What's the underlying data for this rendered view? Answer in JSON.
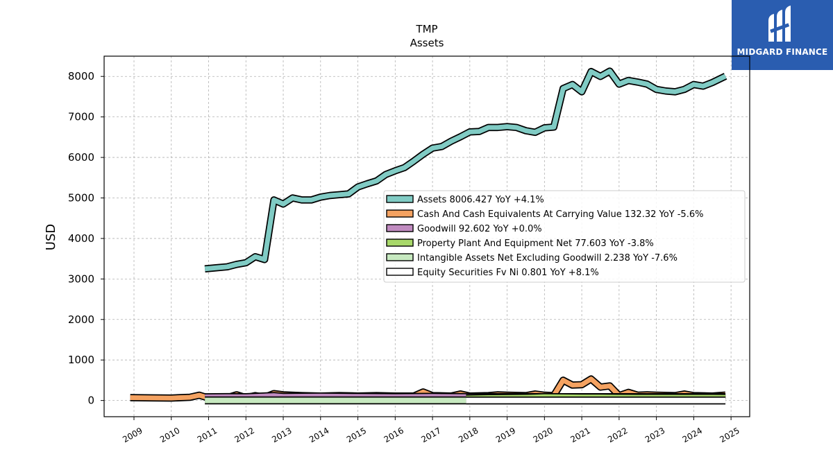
{
  "brand": {
    "name": "MIDGARD FINANCE",
    "bg": "#2a5db0"
  },
  "chart_data": {
    "type": "area",
    "title": "TMP",
    "subtitle": "Assets",
    "ylabel": "USD",
    "xlabel": "",
    "ylim": [
      -400,
      8500
    ],
    "xlim": [
      2008.2,
      2025.5
    ],
    "yticks": [
      0,
      1000,
      2000,
      3000,
      4000,
      5000,
      6000,
      7000,
      8000
    ],
    "xticks": [
      "2009",
      "2010",
      "2011",
      "2012",
      "2013",
      "2014",
      "2015",
      "2016",
      "2017",
      "2018",
      "2019",
      "2020",
      "2021",
      "2022",
      "2023",
      "2024",
      "2025"
    ],
    "grid": true,
    "legend_position": "center-right",
    "series": [
      {
        "name": "Assets",
        "legend": "Assets  8006.427 YoY +4.1%",
        "color": "#80cbc4",
        "x": [
          2010.9,
          2011.25,
          2011.5,
          2011.75,
          2012.0,
          2012.25,
          2012.5,
          2012.75,
          2013.0,
          2013.25,
          2013.5,
          2013.75,
          2014.0,
          2014.25,
          2014.5,
          2014.75,
          2015.0,
          2015.25,
          2015.5,
          2015.75,
          2016.0,
          2016.25,
          2016.5,
          2016.75,
          2017.0,
          2017.25,
          2017.5,
          2017.75,
          2018.0,
          2018.25,
          2018.5,
          2018.75,
          2019.0,
          2019.25,
          2019.5,
          2019.75,
          2020.0,
          2020.25,
          2020.5,
          2020.75,
          2021.0,
          2021.25,
          2021.5,
          2021.75,
          2022.0,
          2022.25,
          2022.5,
          2022.75,
          2023.0,
          2023.25,
          2023.5,
          2023.75,
          2024.0,
          2024.25,
          2024.5,
          2024.85
        ],
        "y": [
          3250,
          3280,
          3300,
          3360,
          3400,
          3550,
          3480,
          4950,
          4850,
          5000,
          4950,
          4950,
          5020,
          5060,
          5080,
          5100,
          5270,
          5350,
          5420,
          5580,
          5670,
          5750,
          5910,
          6080,
          6230,
          6270,
          6400,
          6510,
          6630,
          6640,
          6740,
          6740,
          6760,
          6740,
          6660,
          6620,
          6730,
          6750,
          7700,
          7800,
          7620,
          8120,
          8000,
          8130,
          7810,
          7900,
          7860,
          7810,
          7680,
          7640,
          7620,
          7680,
          7800,
          7760,
          7850,
          8006
        ]
      },
      {
        "name": "Cash And Cash Equivalents At Carrying Value",
        "legend": "Cash And Cash Equivalents At Carrying Value  132.32 YoY -5.6%",
        "color": "#f4a261",
        "x": [
          2008.9,
          2009.5,
          2010.0,
          2010.5,
          2010.75,
          2011.0,
          2011.25,
          2011.5,
          2011.75,
          2012.0,
          2012.25,
          2012.5,
          2012.75,
          2013.0,
          2013.5,
          2014.0,
          2014.5,
          2015.0,
          2015.5,
          2016.0,
          2016.5,
          2016.75,
          2017.0,
          2017.5,
          2017.75,
          2018.0,
          2018.5,
          2018.75,
          2019.0,
          2019.5,
          2019.75,
          2020.0,
          2020.25,
          2020.5,
          2020.75,
          2021.0,
          2021.25,
          2021.5,
          2021.75,
          2022.0,
          2022.25,
          2022.5,
          2022.75,
          2023.0,
          2023.5,
          2023.75,
          2024.0,
          2024.5,
          2024.85
        ],
        "y": [
          70,
          65,
          60,
          80,
          130,
          60,
          80,
          70,
          140,
          70,
          120,
          80,
          170,
          140,
          120,
          110,
          120,
          110,
          120,
          110,
          110,
          210,
          120,
          110,
          160,
          110,
          120,
          140,
          130,
          120,
          160,
          130,
          120,
          500,
          380,
          390,
          530,
          330,
          360,
          120,
          200,
          130,
          140,
          130,
          120,
          160,
          120,
          110,
          132
        ]
      },
      {
        "name": "Goodwill",
        "legend": "Goodwill  92.602 YoY +0.0%",
        "color": "#c08bc0",
        "x": [
          2010.9,
          2011.5,
          2012.0,
          2012.75,
          2013.0,
          2014.0,
          2015.0,
          2016.0,
          2017.0,
          2018.0,
          2019.0,
          2020.0,
          2021.0,
          2022.0,
          2023.0,
          2024.0,
          2024.85
        ],
        "y": [
          90,
          95,
          92,
          120,
          100,
          110,
          100,
          95,
          100,
          95,
          95,
          93,
          93,
          93,
          93,
          93,
          92.6
        ]
      },
      {
        "name": "Property Plant And Equipment Net",
        "legend": "Property Plant And Equipment Net  77.603 YoY -3.8%",
        "color": "#a8d86a",
        "x": [
          2017.9,
          2018.5,
          2019.0,
          2019.5,
          2019.75,
          2020.0,
          2020.5,
          2021.0,
          2021.5,
          2022.0,
          2022.5,
          2023.0,
          2023.5,
          2024.0,
          2024.5,
          2024.85
        ],
        "y": [
          60,
          70,
          75,
          80,
          85,
          95,
          90,
          85,
          85,
          82,
          80,
          80,
          80,
          80,
          80,
          77.6
        ]
      },
      {
        "name": "Intangible Assets Net Excluding Goodwill",
        "legend": "Intangible Assets Net Excluding Goodwill  2.238 YoY -7.6%",
        "color": "#c7e9c0",
        "x": [
          2010.9,
          2017.9
        ],
        "y": [
          2.5,
          2.2
        ]
      },
      {
        "name": "Equity Securities Fv Ni",
        "legend": "Equity Securities Fv Ni  0.801 YoY +8.1%",
        "color": "#ffffff",
        "x": [
          2017.9,
          2024.85
        ],
        "y": [
          0.7,
          0.8
        ]
      }
    ]
  }
}
